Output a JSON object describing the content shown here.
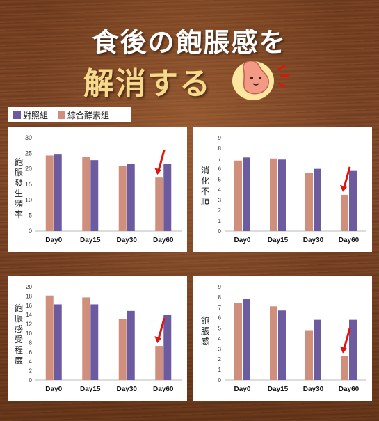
{
  "header": {
    "title_line1": "食後の飽脹感を",
    "title_line2": "解消する"
  },
  "legend": {
    "control": "對照組",
    "treatment": "綜合酵素組"
  },
  "colors": {
    "control": "#6d5ba0",
    "treatment": "#d08f7c",
    "arrow": "#e0140f"
  },
  "chart_data": [
    {
      "type": "bar",
      "ylabel": "飽脹發生頻率",
      "categories": [
        "Day0",
        "Day15",
        "Day30",
        "Day60"
      ],
      "ylim": [
        0,
        30
      ],
      "yticks": [
        0,
        5,
        10,
        15,
        20,
        25,
        30
      ],
      "series": [
        {
          "name": "綜合酵素組",
          "values": [
            24.3,
            23.9,
            20.9,
            17.2
          ]
        },
        {
          "name": "對照組",
          "values": [
            24.6,
            22.8,
            21.6,
            21.6
          ]
        }
      ],
      "arrow_at": "Day60"
    },
    {
      "type": "bar",
      "ylabel": "消化不順",
      "categories": [
        "Day0",
        "Day15",
        "Day30",
        "Day60"
      ],
      "ylim": [
        0,
        9
      ],
      "yticks": [
        0,
        1,
        2,
        3,
        4,
        5,
        6,
        7,
        8,
        9
      ],
      "series": [
        {
          "name": "綜合酵素組",
          "values": [
            6.8,
            7.0,
            5.6,
            3.5
          ]
        },
        {
          "name": "對照組",
          "values": [
            7.1,
            6.9,
            6.0,
            5.8
          ]
        }
      ],
      "arrow_at": "Day60"
    },
    {
      "type": "bar",
      "ylabel": "飽脹感受程度",
      "categories": [
        "Day0",
        "Day15",
        "Day30",
        "Day60"
      ],
      "ylim": [
        0,
        20
      ],
      "yticks": [
        0,
        2,
        4,
        6,
        8,
        10,
        12,
        14,
        16,
        18,
        20
      ],
      "series": [
        {
          "name": "綜合酵素組",
          "values": [
            18.1,
            17.7,
            13.0,
            7.3
          ]
        },
        {
          "name": "對照組",
          "values": [
            16.2,
            16.2,
            14.8,
            14.0
          ]
        }
      ],
      "arrow_at": "Day60"
    },
    {
      "type": "bar",
      "ylabel": "飽脹感",
      "categories": [
        "Day0",
        "Day15",
        "Day30",
        "Day60"
      ],
      "ylim": [
        0,
        9
      ],
      "yticks": [
        0,
        1,
        2,
        3,
        4,
        5,
        6,
        7,
        8,
        9
      ],
      "series": [
        {
          "name": "綜合酵素組",
          "values": [
            7.4,
            7.1,
            4.8,
            2.3
          ]
        },
        {
          "name": "對照組",
          "values": [
            7.8,
            6.7,
            5.8,
            5.8
          ]
        }
      ],
      "arrow_at": "Day60"
    }
  ]
}
